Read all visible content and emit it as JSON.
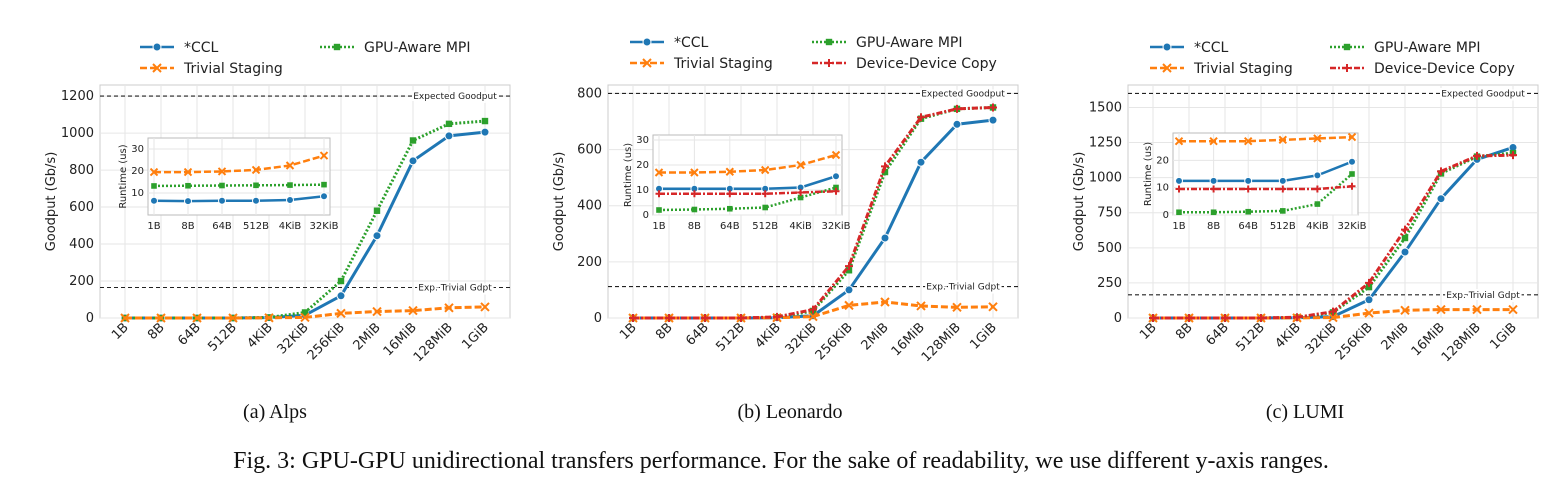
{
  "figure": {
    "caption": "Fig. 3: GPU-GPU unidirectional transfers performance. For the sake of readability, we use different y-axis ranges."
  },
  "colors": {
    "ccl": "#1f77b4",
    "staging": "#ff7f0e",
    "mpi": "#2ca02c",
    "d2d": "#d62728"
  },
  "chart_data": [
    {
      "type": "line",
      "subcaption": "(a) Alps",
      "ylabel": "Goodput (Gb/s)",
      "categories": [
        "1B",
        "8B",
        "64B",
        "512B",
        "4KiB",
        "32KiB",
        "256KiB",
        "2MiB",
        "16MiB",
        "128MiB",
        "1GiB"
      ],
      "yticks": [
        0,
        200,
        400,
        600,
        800,
        1000,
        1200
      ],
      "ylim": [
        0,
        1260
      ],
      "legend": [
        "*CCL",
        "GPU-Aware MPI",
        "Trivial Staging"
      ],
      "series": [
        {
          "name": "*CCL",
          "key": "ccl",
          "values": [
            0,
            0,
            0,
            0,
            2,
            15,
            120,
            445,
            850,
            985,
            1005
          ]
        },
        {
          "name": "GPU-Aware MPI",
          "key": "mpi",
          "values": [
            0,
            0,
            0,
            0,
            3,
            30,
            200,
            580,
            960,
            1050,
            1065
          ]
        },
        {
          "name": "Trivial Staging",
          "key": "staging",
          "values": [
            0,
            0,
            0,
            0,
            1,
            3,
            25,
            35,
            40,
            55,
            60
          ]
        }
      ],
      "reference_lines": [
        {
          "label": "Expected Goodput",
          "value": 1200
        },
        {
          "label": "Exp. Trivial Gdpt",
          "value": 165
        }
      ],
      "inset": {
        "ylabel": "Runtime (us)",
        "categories": [
          "1B",
          "8B",
          "64B",
          "512B",
          "4KiB",
          "32KiB"
        ],
        "yticks": [
          10,
          20,
          30
        ],
        "ylim": [
          0,
          35
        ],
        "series": [
          {
            "name": "*CCL",
            "key": "ccl",
            "values": [
              6.5,
              6.3,
              6.5,
              6.5,
              6.8,
              8.5
            ]
          },
          {
            "name": "GPU-Aware MPI",
            "key": "mpi",
            "values": [
              13.2,
              13.3,
              13.4,
              13.5,
              13.6,
              13.8
            ]
          },
          {
            "name": "Trivial Staging",
            "key": "staging",
            "values": [
              19.5,
              19.5,
              19.8,
              20.5,
              22.5,
              27
            ]
          }
        ]
      }
    },
    {
      "type": "line",
      "subcaption": "(b) Leonardo",
      "ylabel": "Goodput (Gb/s)",
      "categories": [
        "1B",
        "8B",
        "64B",
        "512B",
        "4KiB",
        "32KiB",
        "256KiB",
        "2MiB",
        "16MiB",
        "128MiB",
        "1GiB"
      ],
      "yticks": [
        0,
        200,
        400,
        600,
        800
      ],
      "ylim": [
        0,
        830
      ],
      "legend": [
        "*CCL",
        "GPU-Aware MPI",
        "Trivial Staging",
        "Device-Device Copy"
      ],
      "series": [
        {
          "name": "*CCL",
          "key": "ccl",
          "values": [
            0,
            0,
            0,
            0,
            1,
            8,
            100,
            285,
            555,
            690,
            705
          ]
        },
        {
          "name": "GPU-Aware MPI",
          "key": "mpi",
          "values": [
            0,
            0,
            0,
            0,
            3,
            25,
            170,
            520,
            710,
            745,
            750
          ]
        },
        {
          "name": "Trivial Staging",
          "key": "staging",
          "values": [
            0,
            0,
            0,
            0,
            1,
            5,
            45,
            57,
            43,
            38,
            40
          ]
        },
        {
          "name": "Device-Device Copy",
          "key": "d2d",
          "values": [
            0,
            0,
            0,
            0,
            4,
            30,
            185,
            540,
            715,
            745,
            750
          ]
        }
      ],
      "reference_lines": [
        {
          "label": "Expected Goodput",
          "value": 800
        },
        {
          "label": "Exp. Trivial Gdpt",
          "value": 112
        }
      ],
      "inset": {
        "ylabel": "Runtime (us)",
        "categories": [
          "1B",
          "8B",
          "64B",
          "512B",
          "4KiB",
          "32KiB"
        ],
        "yticks": [
          0,
          10,
          20,
          30
        ],
        "ylim": [
          0,
          32
        ],
        "series": [
          {
            "name": "*CCL",
            "key": "ccl",
            "values": [
              10.5,
              10.5,
              10.5,
              10.5,
              11,
              15.5
            ]
          },
          {
            "name": "GPU-Aware MPI",
            "key": "mpi",
            "values": [
              2,
              2.2,
              2.5,
              3,
              7,
              11
            ]
          },
          {
            "name": "Trivial Staging",
            "key": "staging",
            "values": [
              17,
              17,
              17.3,
              18,
              20,
              24
            ]
          },
          {
            "name": "Device-Device Copy",
            "key": "d2d",
            "values": [
              8.5,
              8.5,
              8.5,
              8.5,
              9,
              9.5
            ]
          }
        ]
      }
    },
    {
      "type": "line",
      "subcaption": "(c) LUMI",
      "ylabel": "Goodput (Gb/s)",
      "categories": [
        "1B",
        "8B",
        "64B",
        "512B",
        "4KiB",
        "32KiB",
        "256KiB",
        "2MiB",
        "16MiB",
        "128MiB",
        "1GiB"
      ],
      "yticks": [
        0,
        250,
        500,
        750,
        1000,
        1250,
        1500
      ],
      "ylim": [
        0,
        1660
      ],
      "legend": [
        "*CCL",
        "GPU-Aware MPI",
        "Trivial Staging",
        "Device-Device Copy"
      ],
      "series": [
        {
          "name": "*CCL",
          "key": "ccl",
          "values": [
            0,
            0,
            0,
            0,
            2,
            10,
            130,
            470,
            850,
            1130,
            1215
          ]
        },
        {
          "name": "GPU-Aware MPI",
          "key": "mpi",
          "values": [
            0,
            0,
            0,
            0,
            4,
            40,
            220,
            570,
            1030,
            1150,
            1175
          ]
        },
        {
          "name": "Trivial Staging",
          "key": "staging",
          "values": [
            0,
            0,
            0,
            0,
            1,
            3,
            35,
            55,
            60,
            60,
            60
          ]
        },
        {
          "name": "Device-Device Copy",
          "key": "d2d",
          "values": [
            0,
            0,
            0,
            0,
            5,
            45,
            250,
            630,
            1045,
            1155,
            1160
          ]
        }
      ],
      "reference_lines": [
        {
          "label": "Expected Goodput",
          "value": 1600
        },
        {
          "label": "Exp. Trivial Gdpt",
          "value": 165
        }
      ],
      "inset": {
        "ylabel": "Runtime (us)",
        "categories": [
          "1B",
          "8B",
          "64B",
          "512B",
          "4KiB",
          "32KiB"
        ],
        "yticks": [
          0,
          10,
          20
        ],
        "ylim": [
          0,
          30
        ],
        "series": [
          {
            "name": "*CCL",
            "key": "ccl",
            "values": [
              12.5,
              12.5,
              12.5,
              12.5,
              14.5,
              19.5
            ]
          },
          {
            "name": "GPU-Aware MPI",
            "key": "mpi",
            "values": [
              1,
              1,
              1.2,
              1.5,
              4,
              15
            ]
          },
          {
            "name": "Trivial Staging",
            "key": "staging",
            "values": [
              27,
              27,
              27,
              27.5,
              28,
              28.5
            ]
          },
          {
            "name": "Device-Device Copy",
            "key": "d2d",
            "values": [
              9.5,
              9.5,
              9.5,
              9.5,
              9.5,
              10.5
            ]
          }
        ]
      }
    }
  ]
}
